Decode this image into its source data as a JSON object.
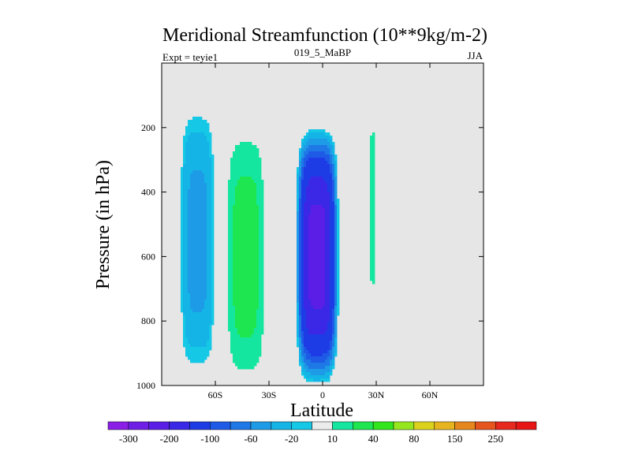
{
  "chart_data": {
    "type": "heatmap",
    "title": "Meridional Streamfunction (10**9kg/m-2)",
    "left_label": "Expt = teyie1",
    "center_label": "019_5_MaBP",
    "right_label": "JJA",
    "xlabel": "Latitude",
    "ylabel": "Pressure (in hPa)",
    "xlim": [
      -90,
      90
    ],
    "ylim": [
      1000,
      0
    ],
    "x_ticks": [
      {
        "value": -60,
        "label": "60S"
      },
      {
        "value": -30,
        "label": "30S"
      },
      {
        "value": 0,
        "label": "0"
      },
      {
        "value": 30,
        "label": "30N"
      },
      {
        "value": 60,
        "label": "60N"
      }
    ],
    "y_ticks": [
      {
        "value": 200,
        "label": "200"
      },
      {
        "value": 400,
        "label": "400"
      },
      {
        "value": 600,
        "label": "600"
      },
      {
        "value": 800,
        "label": "800"
      },
      {
        "value": 1000,
        "label": "1000"
      }
    ],
    "missing_color": "#e6e6e6",
    "color_levels": [
      -300,
      -250,
      -200,
      -150,
      -100,
      -80,
      -60,
      -40,
      -20,
      -10,
      10,
      20,
      40,
      60,
      80,
      100,
      150,
      200,
      250,
      300
    ],
    "colors": [
      "#8a1ee6",
      "#6f1ee6",
      "#5a1ee6",
      "#3a28e6",
      "#1e3ce6",
      "#1e5ae6",
      "#1e78e6",
      "#1e9be6",
      "#14b4e6",
      "#14c8e6",
      "#ececec",
      "#14e6a0",
      "#1ee650",
      "#32e61e",
      "#96e61e",
      "#dcd21e",
      "#e6b41e",
      "#e6871e",
      "#e6551e",
      "#e6281e",
      "#e61414"
    ],
    "colorbar_labels": [
      {
        "after_level": -300,
        "label": "-300"
      },
      {
        "after_level": -200,
        "label": "-200"
      },
      {
        "after_level": -100,
        "label": "-100"
      },
      {
        "after_level": -60,
        "label": "-60"
      },
      {
        "after_level": -20,
        "label": "-20"
      },
      {
        "after_level": 10,
        "label": "10"
      },
      {
        "after_level": 40,
        "label": "40"
      },
      {
        "after_level": 80,
        "label": "80"
      },
      {
        "after_level": 150,
        "label": "150"
      },
      {
        "after_level": 250,
        "label": "250"
      }
    ],
    "fields": [
      {
        "name": "southern-polar-negative-cell",
        "lat_center": -70,
        "lat_halfwidth": 10,
        "p_center": 550,
        "p_halfwidth": 420,
        "peak": -55
      },
      {
        "name": "southern-mid-positive-cell",
        "lat_center": -43,
        "lat_halfwidth": 12,
        "p_center": 600,
        "p_halfwidth": 430,
        "peak": 30
      },
      {
        "name": "equatorial-negative-cell",
        "lat_center": -3,
        "lat_halfwidth": 12,
        "p_center": 600,
        "p_halfwidth": 400,
        "peak": -240
      },
      {
        "name": "northern-tropical-positive-cell",
        "lat_center": 28,
        "lat_halfwidth": 3,
        "p_center": 450,
        "p_halfwidth": 400,
        "peak": 15
      }
    ]
  }
}
